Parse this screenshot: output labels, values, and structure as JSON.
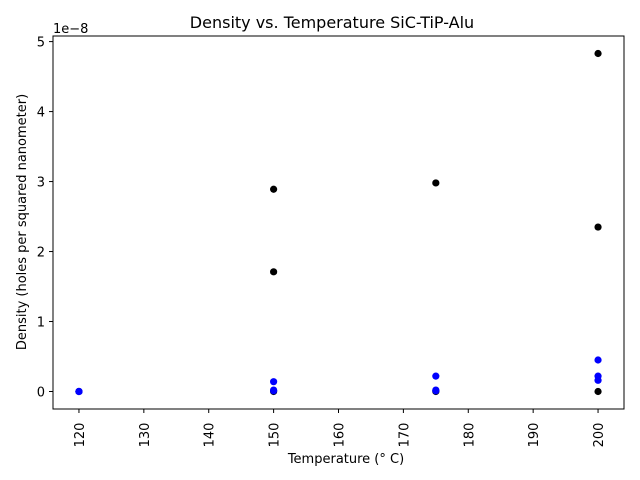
{
  "chart_data": {
    "type": "scatter",
    "title": "Density vs. Temperature SiC-TiP-Alu",
    "xlabel": "Temperature (° C)",
    "ylabel": "Density (holes per squared nanometer)",
    "offset_text": "1e−8",
    "xlim": [
      116.0,
      204.0
    ],
    "ylim": [
      -0.25,
      5.08
    ],
    "y_scale_factor": 1e-08,
    "xticks": [
      120,
      130,
      140,
      150,
      160,
      170,
      180,
      190,
      200
    ],
    "xtick_labels": [
      "120",
      "130",
      "140",
      "150",
      "160",
      "170",
      "180",
      "190",
      "200"
    ],
    "yticks": [
      0,
      1,
      2,
      3,
      4,
      5
    ],
    "ytick_labels": [
      "0",
      "1",
      "2",
      "3",
      "4",
      "5"
    ],
    "grid": false,
    "legend": "none",
    "series": [
      {
        "color": "#000000",
        "x": [
          150,
          150,
          175,
          200,
          200,
          200,
          120,
          150,
          175
        ],
        "y": [
          2.89,
          1.71,
          2.98,
          4.83,
          2.35,
          0.0,
          0.0,
          0.0,
          0.0
        ]
      },
      {
        "color": "#0000ff",
        "x": [
          120,
          120,
          150,
          150,
          150,
          175,
          175,
          175,
          200,
          200,
          200,
          120
        ],
        "y": [
          0.0,
          0.0,
          0.14,
          0.02,
          0.01,
          0.22,
          0.02,
          0.01,
          0.45,
          0.22,
          0.16,
          0.0
        ]
      }
    ]
  }
}
